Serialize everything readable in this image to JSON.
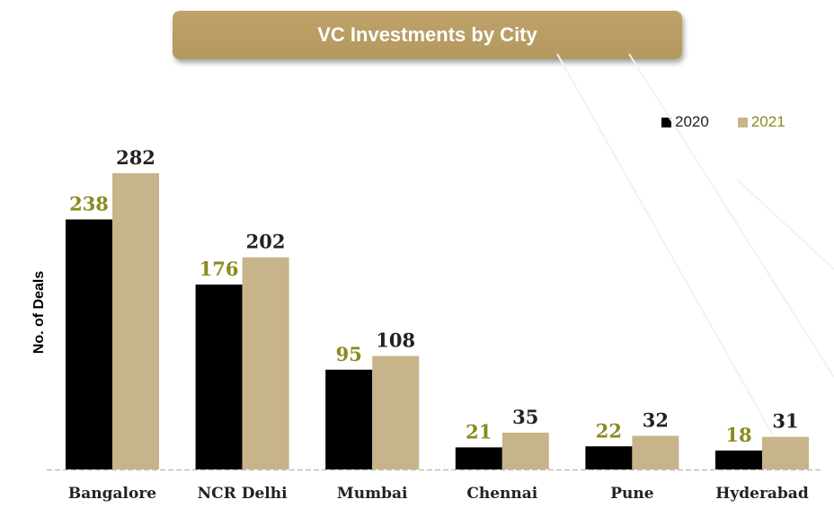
{
  "title": "VC Investments by City",
  "colors": {
    "series_2020": "#000000",
    "series_2021": "#c8b48a",
    "label_2020": "#8a8a1e",
    "label_2021": "#222222",
    "banner": "#b9a066"
  },
  "chart_data": {
    "type": "bar",
    "title": "VC Investments by City",
    "xlabel": "",
    "ylabel": "No. of Deals",
    "categories": [
      "Bangalore",
      "NCR Delhi",
      "Mumbai",
      "Chennai",
      "Pune",
      "Hyderabad"
    ],
    "series": [
      {
        "name": "2020",
        "values": [
          238,
          176,
          95,
          21,
          22,
          18
        ]
      },
      {
        "name": "2021",
        "values": [
          282,
          202,
          108,
          35,
          32,
          31
        ]
      }
    ],
    "ylim": [
      0,
      282
    ],
    "grid": false,
    "legend": "top-right"
  }
}
